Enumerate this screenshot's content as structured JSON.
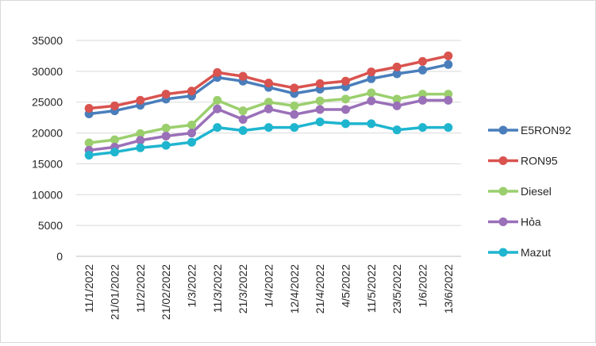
{
  "chart_data": {
    "type": "line",
    "title": "",
    "xlabel": "",
    "ylabel": "",
    "ylim": [
      0,
      35000
    ],
    "ytick_step": 5000,
    "grid": "horizontal",
    "legend_position": "right",
    "categories": [
      "11/1/2022",
      "21/01/2022",
      "11/2/2022",
      "21/02/2022",
      "1/3/2022",
      "11/3/2022",
      "21/3/2022",
      "1/4/2022",
      "12/4/2022",
      "21/4/2022",
      "4/5/2022",
      "11/5/2022",
      "23/5/2022",
      "1/6/2022",
      "13/6/2022"
    ],
    "series": [
      {
        "name": "E5RON92",
        "color": "#4a7ebb",
        "values": [
          23100,
          23600,
          24500,
          25500,
          26000,
          29000,
          28400,
          27400,
          26400,
          27100,
          27500,
          28800,
          29600,
          30200,
          31100
        ]
      },
      {
        "name": "RON95",
        "color": "#d9534f",
        "values": [
          24000,
          24400,
          25300,
          26300,
          26800,
          29800,
          29200,
          28100,
          27300,
          28000,
          28400,
          29900,
          30700,
          31600,
          32500
        ]
      },
      {
        "name": "Diesel",
        "color": "#9bcf6e",
        "values": [
          18400,
          18900,
          19900,
          20800,
          21300,
          25300,
          23600,
          25000,
          24400,
          25200,
          25500,
          26500,
          25500,
          26300,
          26300
        ]
      },
      {
        "name": "Hỏa",
        "color": "#9a70b8",
        "values": [
          17200,
          17700,
          18800,
          19500,
          20000,
          23900,
          22200,
          23900,
          23000,
          23800,
          23800,
          25200,
          24400,
          25300,
          25300
        ]
      },
      {
        "name": "Mazut",
        "color": "#1fb5cf",
        "values": [
          16400,
          16900,
          17600,
          18000,
          18500,
          20900,
          20400,
          20900,
          20900,
          21800,
          21500,
          21500,
          20500,
          20900,
          20900
        ]
      }
    ]
  }
}
